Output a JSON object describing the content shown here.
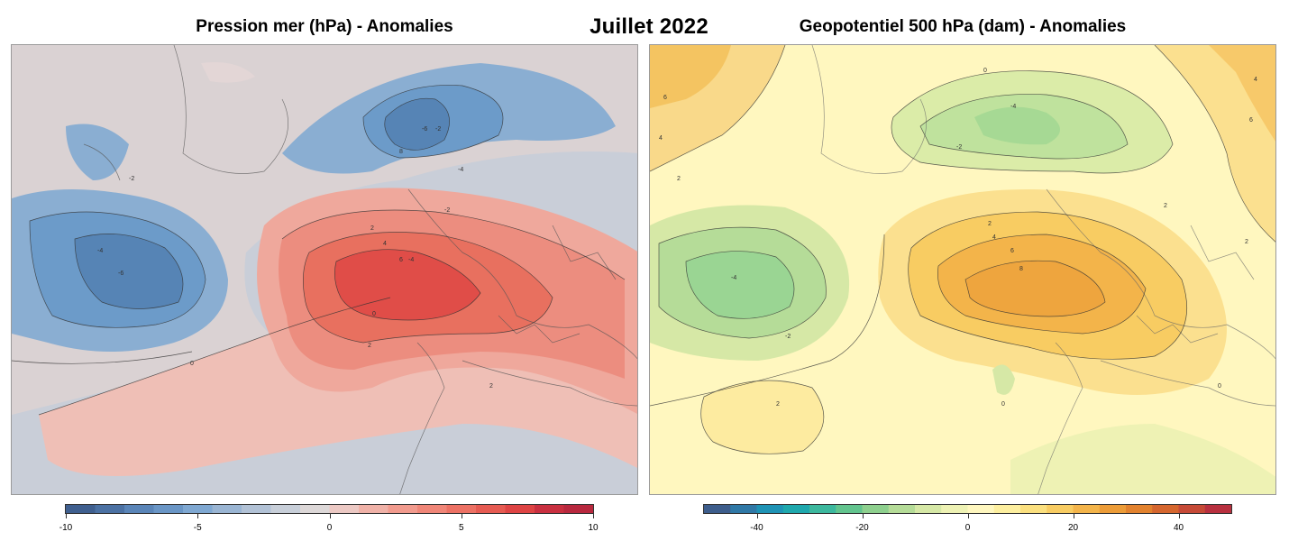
{
  "figure": {
    "month_title": "Juillet 2022"
  },
  "panels": {
    "left": {
      "title": "Pression mer (hPa) - Anomalies",
      "colorbar": {
        "ticks": [
          "-10",
          "-5",
          "0",
          "5",
          "10"
        ],
        "tick_values": [
          -10,
          -5,
          0,
          5,
          10
        ],
        "range": [
          -10,
          10
        ],
        "colors": [
          "#3f5f8f",
          "#4b71a3",
          "#5a85b8",
          "#6a96c6",
          "#7fa8d2",
          "#9ab5d3",
          "#b2c2d6",
          "#c8cfd9",
          "#ddd8d8",
          "#ecc9c4",
          "#f0b2a8",
          "#f29b8e",
          "#f08678",
          "#ec7164",
          "#e65b52",
          "#de4444",
          "#c93040",
          "#b8283e"
        ]
      },
      "contour_labels": [
        "-2",
        "-4",
        "-6",
        "-2",
        "-4",
        "-6",
        "2",
        "4",
        "6",
        "8",
        "2",
        "0",
        "0",
        "2",
        "-2",
        "-4"
      ]
    },
    "right": {
      "title": "Geopotentiel 500 hPa (dam) - Anomalies",
      "colorbar": {
        "ticks": [
          "-40",
          "-20",
          "0",
          "20",
          "40"
        ],
        "tick_values": [
          -40,
          -20,
          0,
          20,
          40
        ],
        "range": [
          -50,
          50
        ],
        "colors": [
          "#3d5d8c",
          "#2f78a6",
          "#1f93b5",
          "#1fa8ad",
          "#3cb89e",
          "#62c48e",
          "#8ed08e",
          "#b5dc98",
          "#d6e8a6",
          "#eef2b4",
          "#fff7bf",
          "#fdef9f",
          "#fbe07f",
          "#f8cc62",
          "#f3b44a",
          "#ec9c38",
          "#e2822e",
          "#d5662e",
          "#c64a37",
          "#b8303f"
        ]
      },
      "contour_labels": [
        "6",
        "4",
        "2",
        "0",
        "-2",
        "-4",
        "-4",
        "-2",
        "2",
        "4",
        "6",
        "8",
        "2",
        "0",
        "2",
        "0",
        "2",
        "4",
        "6"
      ]
    }
  }
}
